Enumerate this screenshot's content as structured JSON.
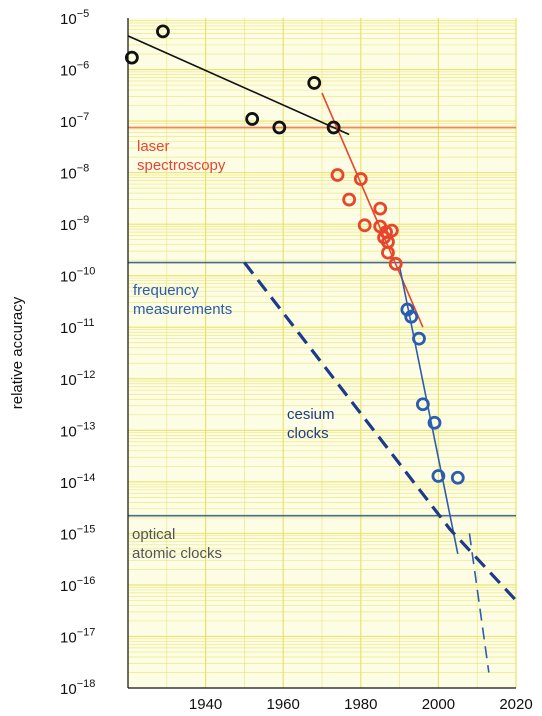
{
  "chart_data": {
    "type": "scatter",
    "title": "",
    "xlabel": "",
    "ylabel": "relative accuracy",
    "xlim": [
      1920,
      2020
    ],
    "ylim_exponent": [
      -18,
      -5
    ],
    "y_scale": "log",
    "x_ticks": [
      "1940",
      "1960",
      "1980",
      "2000",
      "2020"
    ],
    "x_tick_values": [
      1940,
      1960,
      1980,
      2000,
      2020
    ],
    "y_ticks": [
      {
        "base": "10",
        "exp": "−5"
      },
      {
        "base": "10",
        "exp": "−6"
      },
      {
        "base": "10",
        "exp": "−7"
      },
      {
        "base": "10",
        "exp": "−8"
      },
      {
        "base": "10",
        "exp": "−9"
      },
      {
        "base": "10",
        "exp": "−10"
      },
      {
        "base": "10",
        "exp": "−11"
      },
      {
        "base": "10",
        "exp": "−12"
      },
      {
        "base": "10",
        "exp": "−13"
      },
      {
        "base": "10",
        "exp": "−14"
      },
      {
        "base": "10",
        "exp": "−15"
      },
      {
        "base": "10",
        "exp": "−16"
      },
      {
        "base": "10",
        "exp": "−17"
      },
      {
        "base": "10",
        "exp": "−18"
      }
    ],
    "y_tick_exponents": [
      -5,
      -6,
      -7,
      -8,
      -9,
      -10,
      -11,
      -12,
      -13,
      -14,
      -15,
      -16,
      -17,
      -18
    ],
    "grid": true,
    "colors": {
      "background": "#fdfde6",
      "grid": "#e8e36a",
      "black": "#111111",
      "red": "#e8452c",
      "blue": "#2a5db0",
      "dark_blue": "#1e3a8a",
      "gray": "#555555",
      "red_band": "#f08070",
      "blue_band": "#4a6a8a"
    },
    "series": [
      {
        "color": "black",
        "points": [
          {
            "x": 1921,
            "y": 1.7e-06
          },
          {
            "x": 1929,
            "y": 5.5e-06
          },
          {
            "x": 1952,
            "y": 1.1e-07
          },
          {
            "x": 1959,
            "y": 7.5e-08
          },
          {
            "x": 1968,
            "y": 5.5e-07
          },
          {
            "x": 1973,
            "y": 7.5e-08
          }
        ],
        "fit": [
          {
            "x": 1920,
            "y": 4.5e-06
          },
          {
            "x": 1977,
            "y": 5.5e-08
          }
        ]
      },
      {
        "color": "red",
        "points": [
          {
            "x": 1974,
            "y": 9e-09
          },
          {
            "x": 1977,
            "y": 3e-09
          },
          {
            "x": 1980,
            "y": 7.5e-09
          },
          {
            "x": 1981,
            "y": 9.5e-10
          },
          {
            "x": 1985,
            "y": 2e-09
          },
          {
            "x": 1985,
            "y": 9e-10
          },
          {
            "x": 1986,
            "y": 5.5e-10
          },
          {
            "x": 1986.5,
            "y": 7e-10
          },
          {
            "x": 1987,
            "y": 4.5e-10
          },
          {
            "x": 1987,
            "y": 2.8e-10
          },
          {
            "x": 1988,
            "y": 7.5e-10
          },
          {
            "x": 1989,
            "y": 1.7e-10
          }
        ],
        "fit": [
          {
            "x": 1970,
            "y": 3.5e-07
          },
          {
            "x": 1996,
            "y": 1e-11
          }
        ]
      },
      {
        "color": "blue",
        "points": [
          {
            "x": 1992,
            "y": 2.2e-11
          },
          {
            "x": 1993,
            "y": 1.6e-11
          },
          {
            "x": 1995,
            "y": 6e-12
          },
          {
            "x": 1996,
            "y": 3.2e-13
          },
          {
            "x": 1999,
            "y": 1.4e-13
          },
          {
            "x": 2000,
            "y": 1.3e-14
          },
          {
            "x": 2005,
            "y": 1.2e-14
          }
        ],
        "fit": [
          {
            "x": 1990,
            "y": 1.5e-10
          },
          {
            "x": 2005,
            "y": 4e-16
          }
        ]
      }
    ],
    "cesium_line": {
      "color": "dark_blue",
      "dash": "solid_then_thin",
      "points": [
        {
          "x": 1950,
          "y": 1.8e-10
        },
        {
          "x": 2003,
          "y": 1.2e-15
        },
        {
          "x": 2020,
          "y": 5e-17
        }
      ],
      "thin_branch": [
        {
          "x": 2008,
          "y": 1e-15
        },
        {
          "x": 2013,
          "y": 2e-18
        }
      ]
    },
    "bands": [
      {
        "color": "red_band",
        "y": 7.5e-08
      },
      {
        "color": "blue_band",
        "y": 1.8e-10
      },
      {
        "color": "blue_band",
        "y": 2.2e-15
      }
    ],
    "annotations": [
      {
        "lines": [
          "laser",
          "spectroscopy"
        ],
        "color": "red"
      },
      {
        "lines": [
          "frequency",
          "measurements"
        ],
        "color": "blue"
      },
      {
        "lines": [
          "cesium",
          "clocks"
        ],
        "color": "dark_blue"
      },
      {
        "lines": [
          "optical",
          "atomic clocks"
        ],
        "color": "gray"
      }
    ]
  }
}
